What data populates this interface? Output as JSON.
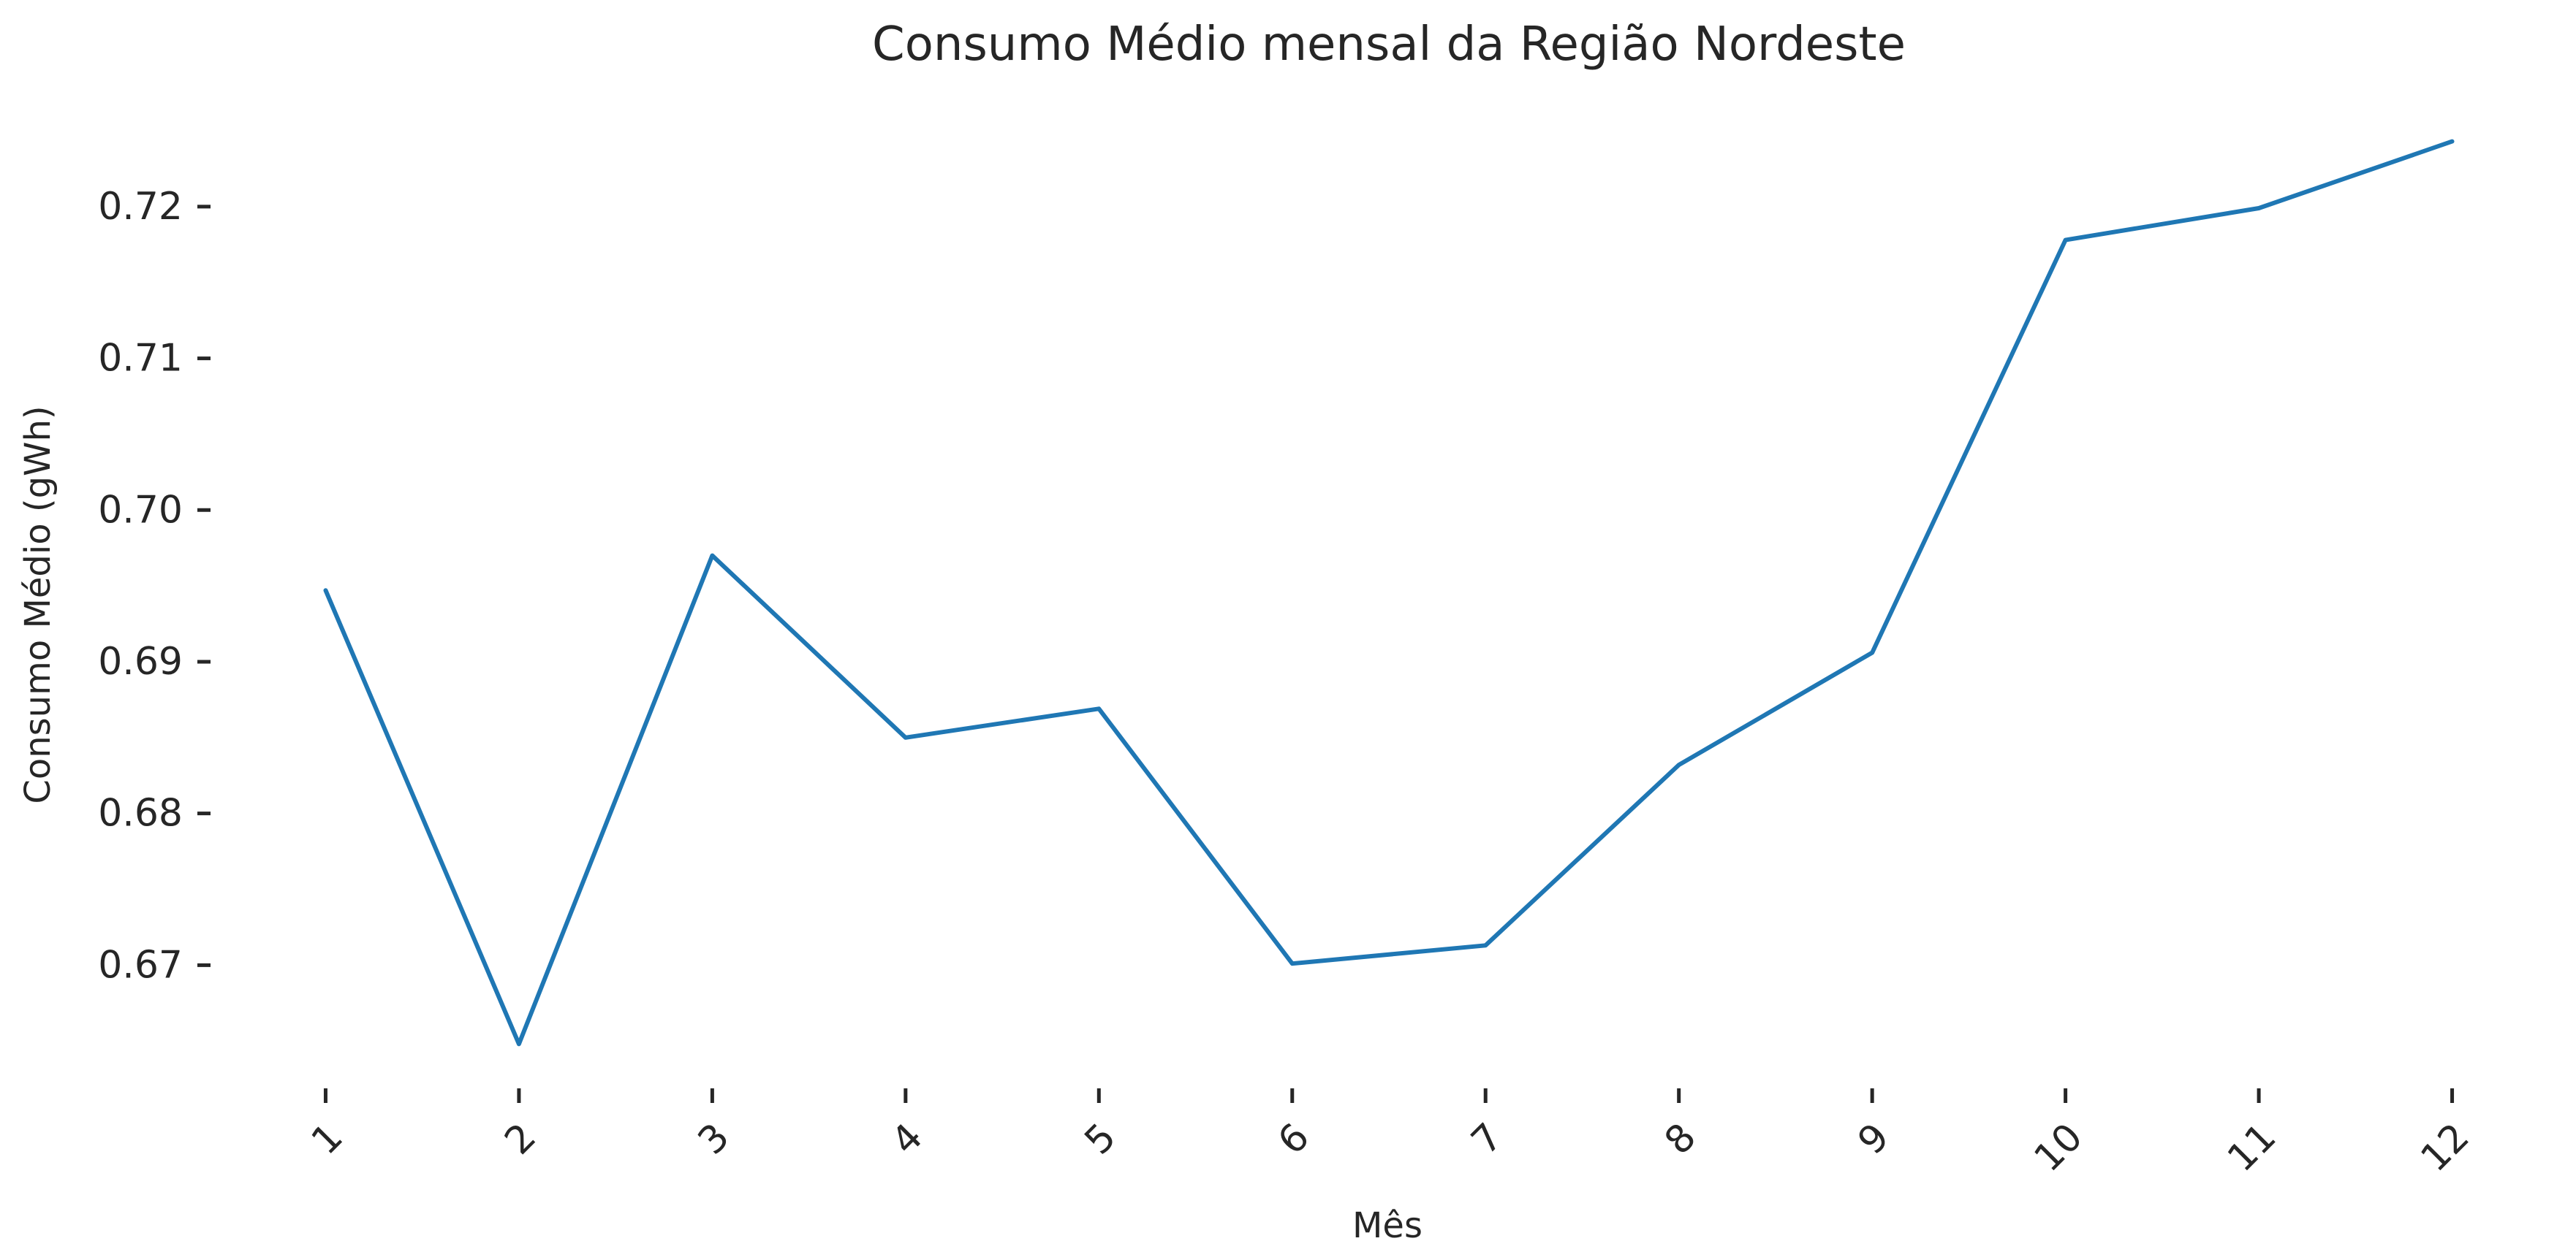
{
  "chart_data": {
    "type": "line",
    "title": "Consumo Médio mensal da Região Nordeste",
    "xlabel": "Mês",
    "ylabel": "Consumo Médio (gWh)",
    "x": [
      1,
      2,
      3,
      4,
      5,
      6,
      7,
      8,
      9,
      10,
      11,
      12
    ],
    "x_tick_labels": [
      "1",
      "2",
      "3",
      "4",
      "5",
      "6",
      "7",
      "8",
      "9",
      "10",
      "11",
      "12"
    ],
    "y_ticks": [
      0.67,
      0.68,
      0.69,
      0.7,
      0.71,
      0.72
    ],
    "y_tick_labels": [
      "0.67",
      "0.68",
      "0.69",
      "0.70",
      "0.71",
      "0.72"
    ],
    "ylim": [
      0.6626,
      0.7264
    ],
    "xlim": [
      0.45,
      12.55
    ],
    "grid": false,
    "series": [
      {
        "color": "#1f77b4",
        "values": [
          0.6947,
          0.6648,
          0.697,
          0.685,
          0.6869,
          0.6701,
          0.6713,
          0.6832,
          0.6906,
          0.7178,
          0.7199,
          0.7243
        ]
      }
    ]
  }
}
